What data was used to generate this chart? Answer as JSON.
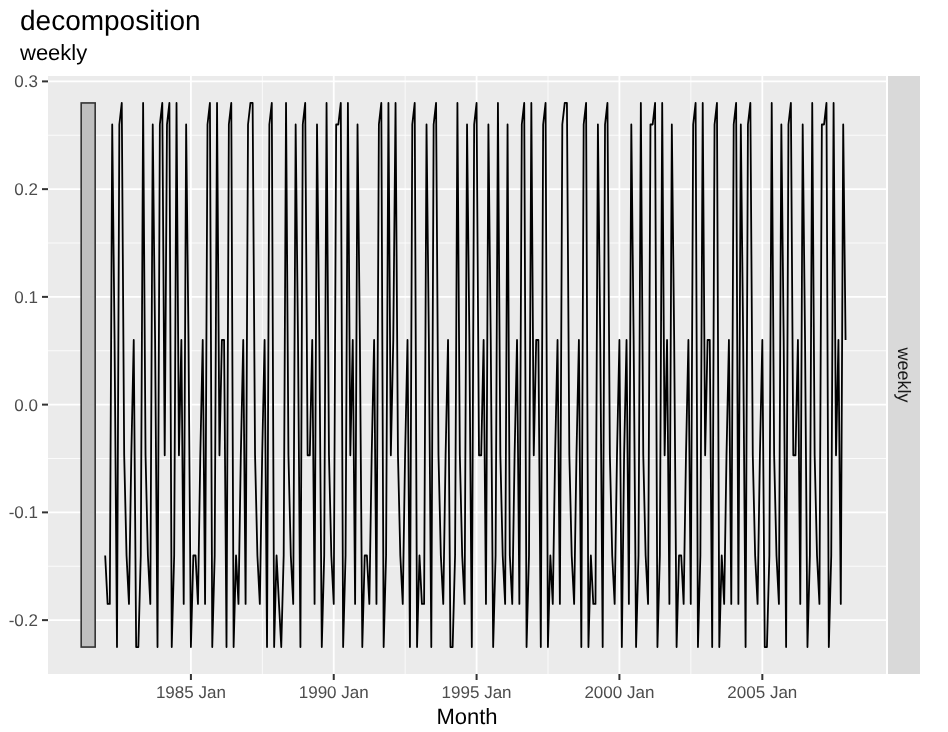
{
  "chart_data": {
    "type": "line",
    "title": "decomposition",
    "subtitle": "weekly",
    "xlabel": "Month",
    "xlim": [
      "1980-01",
      "2009-05"
    ],
    "ylim": [
      -0.25,
      0.305
    ],
    "xticks": [
      {
        "value": "1985-01",
        "label": "1985 Jan"
      },
      {
        "value": "1990-01",
        "label": "1990 Jan"
      },
      {
        "value": "1995-01",
        "label": "1995 Jan"
      },
      {
        "value": "2000-01",
        "label": "2000 Jan"
      },
      {
        "value": "2005-01",
        "label": "2005 Jan"
      }
    ],
    "yticks": [
      {
        "value": -0.2,
        "label": "-0.2"
      },
      {
        "value": -0.1,
        "label": "-0.1"
      },
      {
        "value": 0,
        "label": "0.0"
      },
      {
        "value": 0.1,
        "label": "0.1"
      },
      {
        "value": 0.2,
        "label": "0.2"
      },
      {
        "value": 0.3,
        "label": "0.3"
      }
    ],
    "grid": true,
    "x": [
      "1982-01",
      "1982-02",
      "1982-03",
      "1982-04",
      "1982-05",
      "1982-06",
      "1982-07",
      "1982-08",
      "1982-09",
      "1982-10",
      "1982-11",
      "1982-12",
      "1983-01",
      "1983-02",
      "1983-03",
      "1983-04",
      "1983-05",
      "1983-06",
      "1983-07",
      "1983-08",
      "1983-09",
      "1983-10",
      "1983-11",
      "1983-12",
      "1984-01",
      "1984-02",
      "1984-03",
      "1984-04",
      "1984-05",
      "1984-06",
      "1984-07",
      "1984-08",
      "1984-09",
      "1984-10",
      "1984-11",
      "1984-12",
      "1985-01",
      "1985-02",
      "1985-03",
      "1985-04",
      "1985-05",
      "1985-06",
      "1985-07",
      "1985-08",
      "1985-09",
      "1985-10",
      "1985-11",
      "1985-12",
      "1986-01",
      "1986-02",
      "1986-03",
      "1986-04",
      "1986-05",
      "1986-06",
      "1986-07",
      "1986-08",
      "1986-09",
      "1986-10",
      "1986-11",
      "1986-12",
      "1987-01",
      "1987-02",
      "1987-03",
      "1987-04",
      "1987-05",
      "1987-06",
      "1987-07",
      "1987-08",
      "1987-09",
      "1987-10",
      "1987-11",
      "1987-12",
      "1988-01",
      "1988-02",
      "1988-03",
      "1988-04",
      "1988-05",
      "1988-06",
      "1988-07",
      "1988-08",
      "1988-09",
      "1988-10",
      "1988-11",
      "1988-12",
      "1989-01",
      "1989-02",
      "1989-03",
      "1989-04",
      "1989-05",
      "1989-06",
      "1989-07",
      "1989-08",
      "1989-09",
      "1989-10",
      "1989-11",
      "1989-12",
      "1990-01",
      "1990-02",
      "1990-03",
      "1990-04",
      "1990-05",
      "1990-06",
      "1990-07",
      "1990-08",
      "1990-09",
      "1990-10",
      "1990-11",
      "1990-12",
      "1991-01",
      "1991-02",
      "1991-03",
      "1991-04",
      "1991-05",
      "1991-06",
      "1991-07",
      "1991-08",
      "1991-09",
      "1991-10",
      "1991-11",
      "1991-12",
      "1992-01",
      "1992-02",
      "1992-03",
      "1992-04",
      "1992-05",
      "1992-06",
      "1992-07",
      "1992-08",
      "1992-09",
      "1992-10",
      "1992-11",
      "1992-12",
      "1993-01",
      "1993-02",
      "1993-03",
      "1993-04",
      "1993-05",
      "1993-06",
      "1993-07",
      "1993-08",
      "1993-09",
      "1993-10",
      "1993-11",
      "1993-12",
      "1994-01",
      "1994-02",
      "1994-03",
      "1994-04",
      "1994-05",
      "1994-06",
      "1994-07",
      "1994-08",
      "1994-09",
      "1994-10",
      "1994-11",
      "1994-12",
      "1995-01",
      "1995-02",
      "1995-03",
      "1995-04",
      "1995-05",
      "1995-06",
      "1995-07",
      "1995-08",
      "1995-09",
      "1995-10",
      "1995-11",
      "1995-12",
      "1996-01",
      "1996-02",
      "1996-03",
      "1996-04",
      "1996-05",
      "1996-06",
      "1996-07",
      "1996-08",
      "1996-09",
      "1996-10",
      "1996-11",
      "1996-12",
      "1997-01",
      "1997-02",
      "1997-03",
      "1997-04",
      "1997-05",
      "1997-06",
      "1997-07",
      "1997-08",
      "1997-09",
      "1997-10",
      "1997-11",
      "1997-12",
      "1998-01",
      "1998-02",
      "1998-03",
      "1998-04",
      "1998-05",
      "1998-06",
      "1998-07",
      "1998-08",
      "1998-09",
      "1998-10",
      "1998-11",
      "1998-12",
      "1999-01",
      "1999-02",
      "1999-03",
      "1999-04",
      "1999-05",
      "1999-06",
      "1999-07",
      "1999-08",
      "1999-09",
      "1999-10",
      "1999-11",
      "1999-12",
      "2000-01",
      "2000-02",
      "2000-03",
      "2000-04",
      "2000-05",
      "2000-06",
      "2000-07",
      "2000-08",
      "2000-09",
      "2000-10",
      "2000-11",
      "2000-12",
      "2001-01",
      "2001-02",
      "2001-03",
      "2001-04",
      "2001-05",
      "2001-06",
      "2001-07",
      "2001-08",
      "2001-09",
      "2001-10",
      "2001-11",
      "2001-12",
      "2002-01",
      "2002-02",
      "2002-03",
      "2002-04",
      "2002-05",
      "2002-06",
      "2002-07",
      "2002-08",
      "2002-09",
      "2002-10",
      "2002-11",
      "2002-12",
      "2003-01",
      "2003-02",
      "2003-03",
      "2003-04",
      "2003-05",
      "2003-06",
      "2003-07",
      "2003-08",
      "2003-09",
      "2003-10",
      "2003-11",
      "2003-12",
      "2004-01",
      "2004-02",
      "2004-03",
      "2004-04",
      "2004-05",
      "2004-06",
      "2004-07",
      "2004-08",
      "2004-09",
      "2004-10",
      "2004-11",
      "2004-12",
      "2005-01",
      "2005-02",
      "2005-03",
      "2005-04",
      "2005-05",
      "2005-06",
      "2005-07",
      "2005-08",
      "2005-09",
      "2005-10",
      "2005-11",
      "2005-12",
      "2006-01",
      "2006-02",
      "2006-03",
      "2006-04",
      "2006-05",
      "2006-06",
      "2006-07",
      "2006-08",
      "2006-09",
      "2006-10",
      "2006-11",
      "2006-12",
      "2007-01",
      "2007-02",
      "2007-03",
      "2007-04",
      "2007-05",
      "2007-06",
      "2007-07",
      "2007-08",
      "2007-09",
      "2007-10",
      "2007-11",
      "2007-12"
    ],
    "series": [
      {
        "name": "weekly",
        "color": "#000000",
        "values": [
          -0.14,
          -0.185,
          -0.185,
          0.26,
          0.06,
          -0.225,
          0.26,
          0.28,
          -0.047,
          -0.14,
          -0.185,
          -0.047,
          0.06,
          -0.225,
          -0.225,
          -0.14,
          0.28,
          -0.047,
          -0.14,
          -0.185,
          0.26,
          0.06,
          -0.225,
          0.26,
          0.28,
          -0.047,
          0.26,
          0.28,
          -0.225,
          -0.14,
          0.28,
          -0.047,
          0.06,
          -0.185,
          0.26,
          0.06,
          -0.225,
          -0.14,
          -0.14,
          -0.185,
          -0.047,
          0.06,
          -0.185,
          0.26,
          0.28,
          -0.225,
          -0.14,
          0.28,
          -0.047,
          0.06,
          0.06,
          -0.225,
          0.26,
          0.28,
          -0.225,
          -0.14,
          -0.185,
          -0.047,
          0.06,
          -0.185,
          0.26,
          0.28,
          0.28,
          -0.047,
          -0.14,
          -0.185,
          -0.047,
          0.06,
          -0.225,
          0.26,
          0.28,
          -0.225,
          -0.14,
          -0.185,
          -0.225,
          -0.14,
          0.28,
          -0.047,
          -0.14,
          -0.185,
          0.26,
          0.06,
          -0.225,
          0.26,
          0.28,
          -0.047,
          -0.047,
          0.06,
          -0.185,
          0.26,
          0.06,
          -0.225,
          -0.14,
          0.28,
          -0.047,
          -0.14,
          -0.185,
          0.26,
          0.26,
          0.28,
          -0.225,
          -0.14,
          0.28,
          -0.047,
          0.06,
          -0.185,
          0.26,
          0.06,
          -0.225,
          -0.14,
          -0.14,
          -0.185,
          -0.047,
          0.06,
          -0.185,
          0.26,
          0.28,
          -0.225,
          -0.14,
          0.28,
          -0.047,
          0.06,
          0.28,
          -0.047,
          -0.14,
          -0.185,
          -0.047,
          0.06,
          -0.225,
          0.26,
          0.28,
          -0.225,
          -0.14,
          -0.185,
          -0.185,
          0.26,
          0.06,
          -0.225,
          0.26,
          0.28,
          -0.047,
          -0.14,
          -0.185,
          -0.047,
          0.06,
          -0.225,
          -0.225,
          -0.14,
          0.28,
          -0.047,
          -0.14,
          -0.185,
          0.26,
          0.06,
          -0.225,
          0.26,
          0.28,
          -0.047,
          -0.047,
          0.06,
          -0.185,
          0.26,
          0.06,
          -0.225,
          -0.14,
          0.28,
          -0.047,
          -0.14,
          -0.185,
          0.26,
          -0.14,
          -0.185,
          -0.047,
          0.06,
          -0.185,
          0.26,
          0.28,
          -0.225,
          -0.14,
          0.28,
          -0.047,
          0.06,
          0.06,
          -0.225,
          0.26,
          0.28,
          -0.225,
          -0.14,
          -0.185,
          -0.047,
          0.06,
          -0.185,
          0.26,
          0.28,
          0.28,
          -0.047,
          -0.14,
          -0.185,
          -0.047,
          0.06,
          -0.225,
          0.26,
          0.28,
          -0.225,
          -0.14,
          -0.185,
          -0.185,
          0.26,
          0.06,
          -0.225,
          0.26,
          0.28,
          -0.047,
          -0.14,
          -0.185,
          -0.047,
          0.06,
          -0.225,
          -0.047,
          0.06,
          -0.185,
          0.26,
          0.06,
          -0.225,
          -0.14,
          0.28,
          -0.047,
          -0.14,
          -0.185,
          0.26,
          0.26,
          0.28,
          -0.225,
          -0.14,
          0.28,
          -0.047,
          0.06,
          -0.185,
          0.26,
          0.06,
          -0.225,
          -0.14,
          -0.14,
          -0.185,
          -0.047,
          0.06,
          -0.185,
          0.26,
          0.28,
          -0.225,
          -0.14,
          0.28,
          -0.047,
          0.06,
          0.06,
          -0.225,
          0.26,
          0.28,
          -0.225,
          -0.14,
          -0.185,
          -0.047,
          0.06,
          -0.185,
          0.26,
          0.28,
          -0.185,
          0.26,
          0.06,
          -0.225,
          0.26,
          0.28,
          -0.047,
          -0.14,
          -0.185,
          -0.047,
          0.06,
          -0.225,
          -0.225,
          -0.14,
          0.28,
          -0.047,
          -0.14,
          -0.185,
          0.26,
          0.06,
          -0.225,
          0.26,
          0.28,
          -0.047,
          -0.047,
          0.06,
          -0.185,
          0.26,
          0.06,
          -0.225,
          -0.14,
          0.28,
          -0.047,
          -0.14,
          -0.185,
          0.26,
          0.26,
          0.28,
          -0.225,
          -0.14,
          0.28,
          -0.047,
          0.06,
          -0.185,
          0.26,
          0.06
        ]
      }
    ]
  }
}
